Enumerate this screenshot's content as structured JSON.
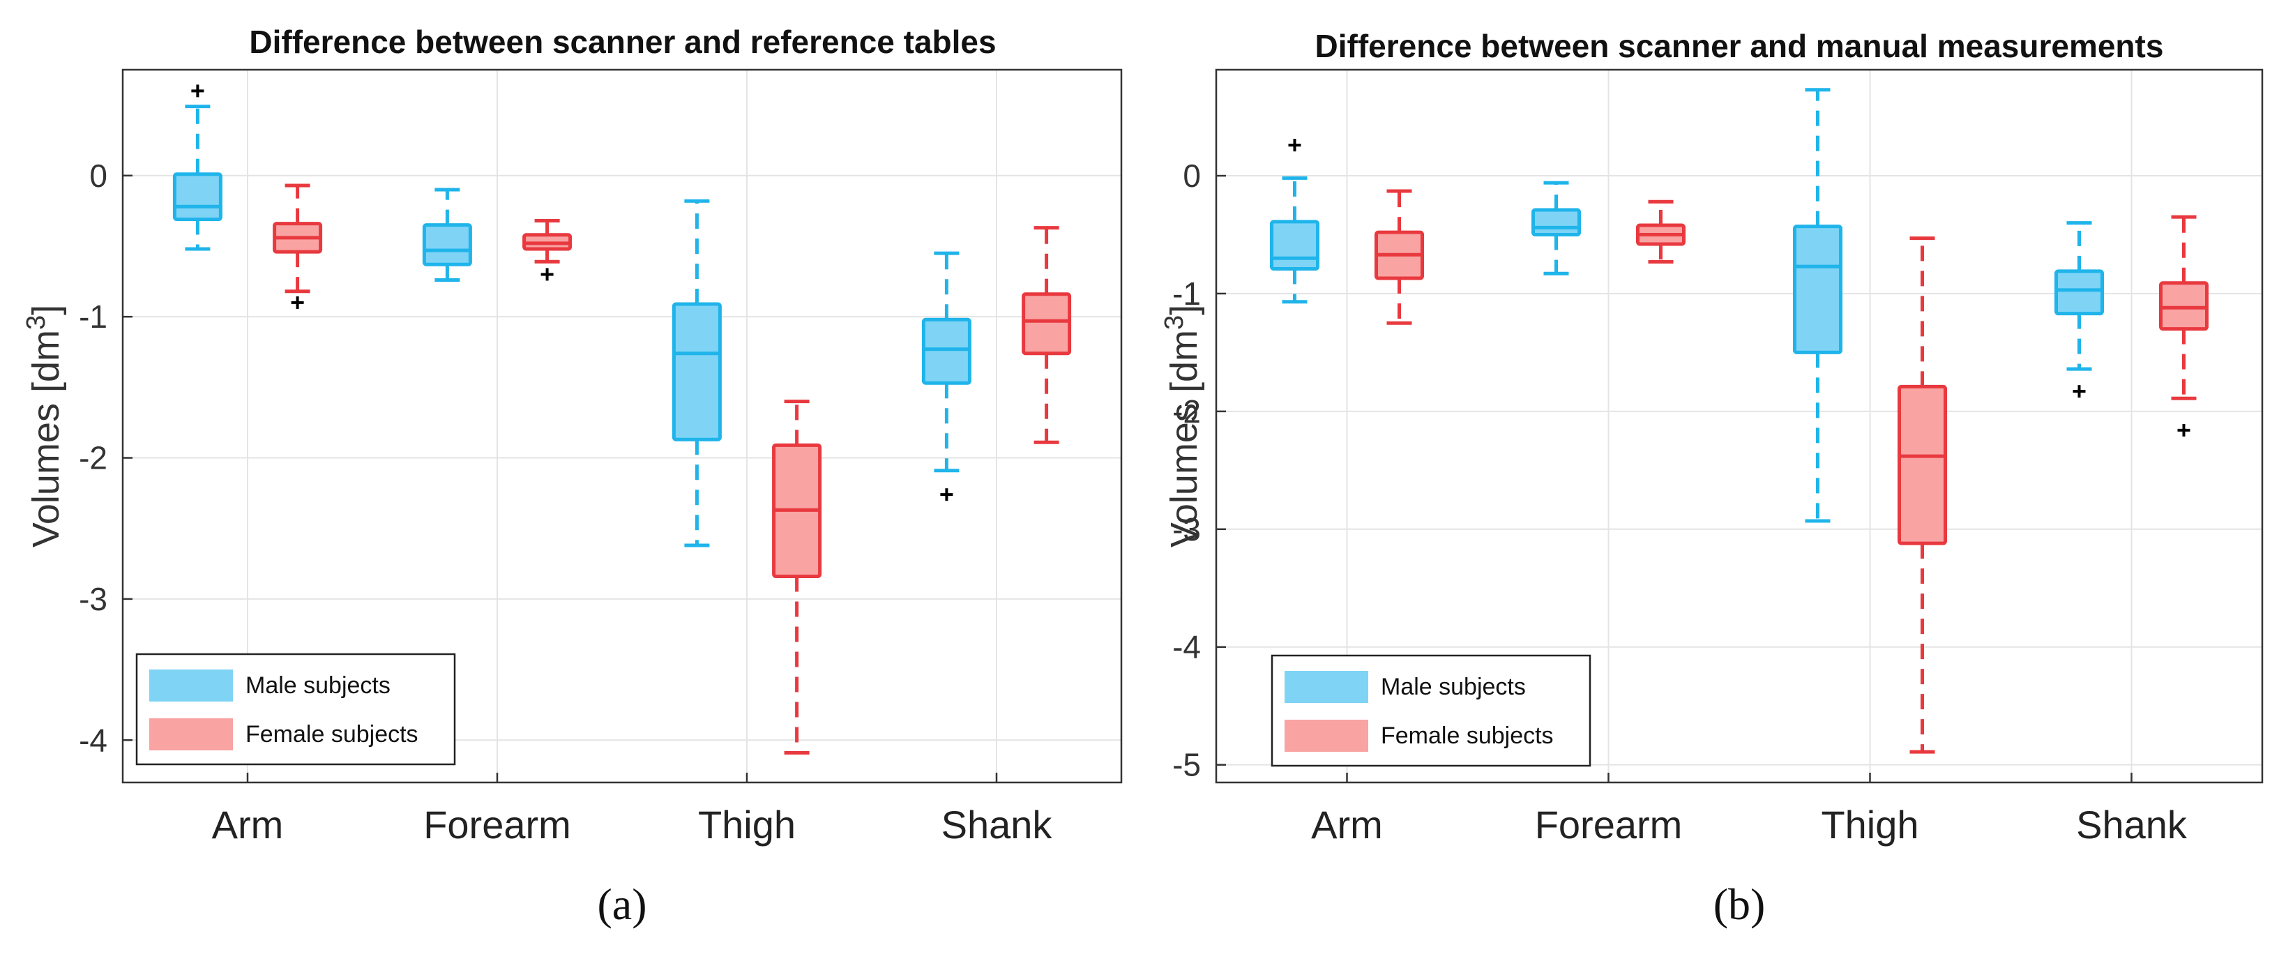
{
  "chart_data": [
    {
      "type": "box",
      "panel_label": "(a)",
      "title": "Difference between scanner and reference tables",
      "ylabel": "Volumes [dm",
      "ylabel_sup": "3",
      "xlabel": "",
      "ylim": [
        -4.3,
        0.75
      ],
      "yticks": [
        0,
        -1,
        -2,
        -3,
        -4
      ],
      "ytick_labels": [
        "0",
        "-1",
        "-2",
        "-3",
        "-4"
      ],
      "grid": true,
      "legend_position": "bottom-left",
      "categories": [
        "Arm",
        "Forearm",
        "Thigh",
        "Shank"
      ],
      "series": [
        {
          "name": "Male subjects",
          "legend_label": "Male subjects",
          "color": "#1fb4ea",
          "fill": "#7fd4f6",
          "boxes": [
            {
              "category": "Arm",
              "whisker_low": -0.52,
              "q1": -0.31,
              "median": -0.22,
              "q3": 0.01,
              "whisker_high": 0.49,
              "outliers": [
                0.6
              ]
            },
            {
              "category": "Forearm",
              "whisker_low": -0.74,
              "q1": -0.63,
              "median": -0.53,
              "q3": -0.35,
              "whisker_high": -0.1,
              "outliers": []
            },
            {
              "category": "Thigh",
              "whisker_low": -2.62,
              "q1": -1.87,
              "median": -1.26,
              "q3": -0.91,
              "whisker_high": -0.18,
              "outliers": []
            },
            {
              "category": "Shank",
              "whisker_low": -2.09,
              "q1": -1.47,
              "median": -1.23,
              "q3": -1.02,
              "whisker_high": -0.55,
              "outliers": [
                -2.26
              ]
            }
          ]
        },
        {
          "name": "Female subjects",
          "legend_label": "Female subjects",
          "color": "#e8393f",
          "fill": "#f9a3a3",
          "boxes": [
            {
              "category": "Arm",
              "whisker_low": -0.82,
              "q1": -0.54,
              "median": -0.44,
              "q3": -0.34,
              "whisker_high": -0.07,
              "outliers": [
                -0.9
              ]
            },
            {
              "category": "Forearm",
              "whisker_low": -0.61,
              "q1": -0.52,
              "median": -0.48,
              "q3": -0.42,
              "whisker_high": -0.32,
              "outliers": [
                -0.7
              ]
            },
            {
              "category": "Thigh",
              "whisker_low": -4.09,
              "q1": -2.84,
              "median": -2.37,
              "q3": -1.91,
              "whisker_high": -1.6,
              "outliers": []
            },
            {
              "category": "Shank",
              "whisker_low": -1.89,
              "q1": -1.26,
              "median": -1.03,
              "q3": -0.84,
              "whisker_high": -0.37,
              "outliers": []
            }
          ]
        }
      ]
    },
    {
      "type": "box",
      "panel_label": "(b)",
      "title": "Difference between scanner and manual measurements",
      "ylabel": "Volumes [dm",
      "ylabel_sup": "3",
      "xlabel": "",
      "ylim": [
        -5.15,
        0.9
      ],
      "yticks": [
        0,
        -1,
        -2,
        -3,
        -4,
        -5
      ],
      "ytick_labels": [
        "0",
        "-1",
        "-2",
        "-3",
        "-4",
        "-5"
      ],
      "grid": true,
      "legend_position": "bottom-left",
      "categories": [
        "Arm",
        "Forearm",
        "Thigh",
        "Shank"
      ],
      "series": [
        {
          "name": "Male subjects",
          "legend_label": "Male subjects",
          "color": "#1fb4ea",
          "fill": "#7fd4f6",
          "boxes": [
            {
              "category": "Arm",
              "whisker_low": -1.07,
              "q1": -0.79,
              "median": -0.7,
              "q3": -0.39,
              "whisker_high": -0.02,
              "outliers": [
                0.26
              ]
            },
            {
              "category": "Forearm",
              "whisker_low": -0.83,
              "q1": -0.5,
              "median": -0.44,
              "q3": -0.29,
              "whisker_high": -0.06,
              "outliers": []
            },
            {
              "category": "Thigh",
              "whisker_low": -2.93,
              "q1": -1.5,
              "median": -0.77,
              "q3": -0.43,
              "whisker_high": 0.73,
              "outliers": []
            },
            {
              "category": "Shank",
              "whisker_low": -1.64,
              "q1": -1.17,
              "median": -0.97,
              "q3": -0.81,
              "whisker_high": -0.4,
              "outliers": [
                -1.83
              ]
            }
          ]
        },
        {
          "name": "Female subjects",
          "legend_label": "Female subjects",
          "color": "#e8393f",
          "fill": "#f9a3a3",
          "boxes": [
            {
              "category": "Arm",
              "whisker_low": -1.25,
              "q1": -0.87,
              "median": -0.67,
              "q3": -0.48,
              "whisker_high": -0.13,
              "outliers": []
            },
            {
              "category": "Forearm",
              "whisker_low": -0.73,
              "q1": -0.58,
              "median": -0.5,
              "q3": -0.42,
              "whisker_high": -0.22,
              "outliers": []
            },
            {
              "category": "Thigh",
              "whisker_low": -4.89,
              "q1": -3.12,
              "median": -2.38,
              "q3": -1.79,
              "whisker_high": -0.53,
              "outliers": []
            },
            {
              "category": "Shank",
              "whisker_low": -1.89,
              "q1": -1.3,
              "median": -1.12,
              "q3": -0.91,
              "whisker_high": -0.35,
              "outliers": [
                -2.16
              ]
            }
          ]
        }
      ]
    }
  ]
}
